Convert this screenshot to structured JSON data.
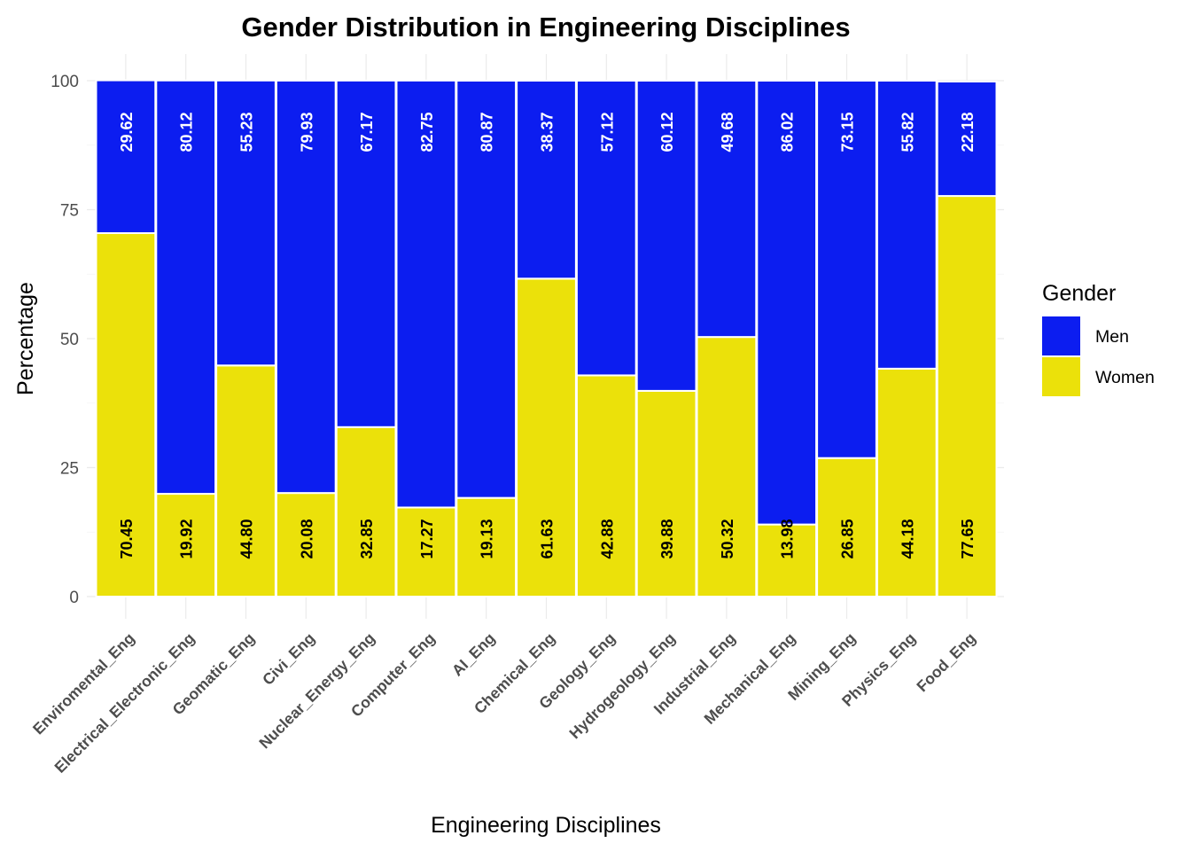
{
  "chart_data": {
    "type": "bar",
    "stacked": true,
    "title": "Gender Distribution in Engineering Disciplines",
    "xlabel": "Engineering Disciplines",
    "ylabel": "Percentage",
    "ylim": [
      0,
      100
    ],
    "yticks": [
      "0",
      "25",
      "50",
      "75",
      "100"
    ],
    "grid": true,
    "legend": {
      "title": "Gender",
      "position": "right"
    },
    "categories": [
      "Enviromental_Eng",
      "Electrical_Electronic_Eng",
      "Geomatic_Eng",
      "Civi_Eng",
      "Nuclear_Energy_Eng",
      "Computer_Eng",
      "AI_Eng",
      "Chemical_Eng",
      "Geology_Eng",
      "Hydrogeology_Eng",
      "Industrial_Eng",
      "Mechanical_Eng",
      "Mining_Eng",
      "Physics_Eng",
      "Food_Eng"
    ],
    "series": [
      {
        "name": "Women",
        "color": "#ebe10a",
        "label_color": "#000000",
        "values": [
          70.45,
          19.92,
          44.8,
          20.08,
          32.85,
          17.27,
          19.13,
          61.63,
          42.88,
          39.88,
          50.32,
          13.98,
          26.85,
          44.18,
          77.65
        ],
        "labels": [
          "70.45",
          "19.92",
          "44.80",
          "20.08",
          "32.85",
          "17.27",
          "19.13",
          "61.63",
          "42.88",
          "39.88",
          "50.32",
          "13.98",
          "26.85",
          "44.18",
          "77.65"
        ]
      },
      {
        "name": "Men",
        "color": "#0c1df0",
        "label_color": "#ffffff",
        "values": [
          29.62,
          80.12,
          55.23,
          79.93,
          67.17,
          82.75,
          80.87,
          38.37,
          57.12,
          60.12,
          49.68,
          86.02,
          73.15,
          55.82,
          22.18
        ],
        "labels": [
          "29.62",
          "80.12",
          "55.23",
          "79.93",
          "67.17",
          "82.75",
          "80.87",
          "38.37",
          "57.12",
          "60.12",
          "49.68",
          "86.02",
          "73.15",
          "55.82",
          "22.18"
        ]
      }
    ],
    "legend_order": [
      "Men",
      "Women"
    ]
  }
}
